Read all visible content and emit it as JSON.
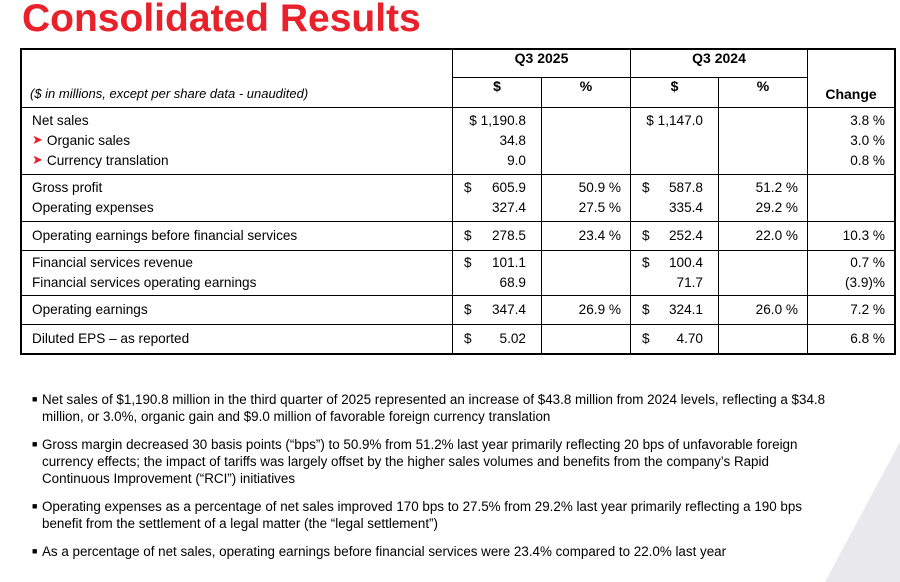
{
  "title": "Consolidated Results",
  "table": {
    "unit_note": "($ in millions, except per share data - unaudited)",
    "periods": [
      "Q3 2025",
      "Q3 2024"
    ],
    "subheaders": {
      "dollar": "$",
      "percent": "%"
    },
    "change_header": "Change",
    "groups": [
      {
        "rows": [
          {
            "label": "Net sales",
            "arrow": false,
            "q3_2025_dollar": "$ 1,190.8",
            "q3_2025_dollar_sign": "",
            "q3_2025_pct": "",
            "q3_2024_dollar": "$ 1,147.0",
            "q3_2024_dollar_sign": "",
            "q3_2024_pct": "",
            "change": "3.8 %"
          },
          {
            "label": "Organic sales",
            "arrow": true,
            "q3_2025_dollar": "34.8",
            "q3_2025_dollar_sign": "",
            "q3_2025_pct": "",
            "q3_2024_dollar": "",
            "q3_2024_dollar_sign": "",
            "q3_2024_pct": "",
            "change": "3.0 %"
          },
          {
            "label": "Currency translation",
            "arrow": true,
            "q3_2025_dollar": "9.0",
            "q3_2025_dollar_sign": "",
            "q3_2025_pct": "",
            "q3_2024_dollar": "",
            "q3_2024_dollar_sign": "",
            "q3_2024_pct": "",
            "change": "0.8 %"
          }
        ]
      },
      {
        "rows": [
          {
            "label": "Gross profit",
            "arrow": false,
            "q3_2025_dollar": "605.9",
            "q3_2025_dollar_sign": "$",
            "q3_2025_pct": "50.9 %",
            "q3_2024_dollar": "587.8",
            "q3_2024_dollar_sign": "$",
            "q3_2024_pct": "51.2 %",
            "change": ""
          },
          {
            "label": "Operating expenses",
            "arrow": false,
            "q3_2025_dollar": "327.4",
            "q3_2025_dollar_sign": "",
            "q3_2025_pct": "27.5 %",
            "q3_2024_dollar": "335.4",
            "q3_2024_dollar_sign": "",
            "q3_2024_pct": "29.2 %",
            "change": ""
          }
        ]
      },
      {
        "rows": [
          {
            "label": "Operating earnings before financial services",
            "arrow": false,
            "q3_2025_dollar": "278.5",
            "q3_2025_dollar_sign": "$",
            "q3_2025_pct": "23.4 %",
            "q3_2024_dollar": "252.4",
            "q3_2024_dollar_sign": "$",
            "q3_2024_pct": "22.0 %",
            "change": "10.3 %"
          }
        ]
      },
      {
        "rows": [
          {
            "label": "Financial services revenue",
            "arrow": false,
            "q3_2025_dollar": "101.1",
            "q3_2025_dollar_sign": "$",
            "q3_2025_pct": "",
            "q3_2024_dollar": "100.4",
            "q3_2024_dollar_sign": "$",
            "q3_2024_pct": "",
            "change": "0.7 %"
          },
          {
            "label": "Financial services operating earnings",
            "arrow": false,
            "q3_2025_dollar": "68.9",
            "q3_2025_dollar_sign": "",
            "q3_2025_pct": "",
            "q3_2024_dollar": "71.7",
            "q3_2024_dollar_sign": "",
            "q3_2024_pct": "",
            "change": "(3.9)%"
          }
        ]
      },
      {
        "rows": [
          {
            "label": "Operating earnings",
            "arrow": false,
            "q3_2025_dollar": "347.4",
            "q3_2025_dollar_sign": "$",
            "q3_2025_pct": "26.9 %",
            "q3_2024_dollar": "324.1",
            "q3_2024_dollar_sign": "$",
            "q3_2024_pct": "26.0 %",
            "change": "7.2 %"
          }
        ]
      },
      {
        "rows": [
          {
            "label": "Diluted EPS – as reported",
            "arrow": false,
            "q3_2025_dollar": "5.02",
            "q3_2025_dollar_sign": "$",
            "q3_2025_pct": "",
            "q3_2024_dollar": "4.70",
            "q3_2024_dollar_sign": "$",
            "q3_2024_pct": "",
            "change": "6.8 %"
          }
        ]
      }
    ]
  },
  "bullets": [
    "Net sales of $1,190.8 million in the third quarter of 2025 represented an increase of $43.8 million from 2024 levels, reflecting a $34.8 million, or 3.0%, organic gain and $9.0 million of favorable foreign currency translation",
    "Gross margin decreased 30 basis points (“bps”) to 50.9% from 51.2% last year primarily reflecting 20 bps of unfavorable foreign currency effects; the impact of tariffs was largely offset by the higher sales volumes and benefits from the company’s Rapid Continuous Improvement (“RCI”) initiatives",
    "Operating expenses as a percentage of net sales improved 170 bps to 27.5% from 29.2% last year primarily reflecting a 190 bps benefit from the settlement of a legal matter (the “legal settlement”)",
    "As a percentage of net sales, operating earnings before financial services were 23.4% compared to 22.0% last year"
  ],
  "icons": {
    "arrow": "➤",
    "bullet": "■"
  },
  "colors": {
    "title": "#e8212b",
    "arrow": "#e8212b",
    "deco": "#e9e9ec"
  }
}
